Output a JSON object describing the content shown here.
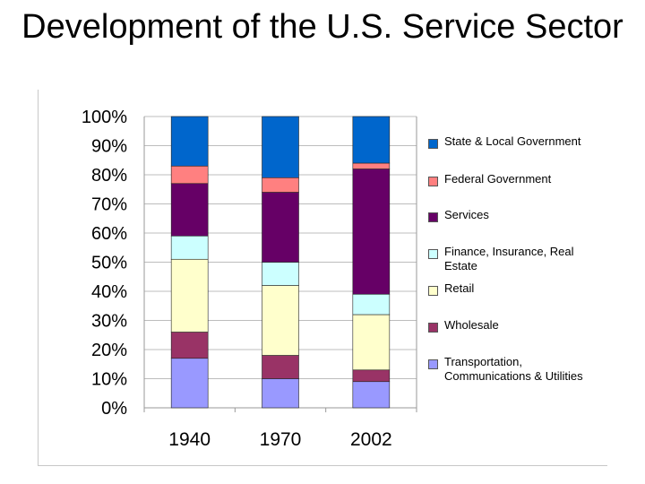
{
  "title": "Development of the U.S. Service Sector",
  "colors": {
    "state_local": "#0066cc",
    "federal": "#ff8080",
    "services": "#660066",
    "finance": "#ccffff",
    "retail": "#ffffcc",
    "wholesale": "#993366",
    "transportation": "#9999ff"
  },
  "chart_data": {
    "type": "bar",
    "stacked": true,
    "categories": [
      "1940",
      "1970",
      "2002"
    ],
    "y_tick_labels": [
      "0%",
      "10%",
      "20%",
      "30%",
      "40%",
      "50%",
      "60%",
      "70%",
      "80%",
      "90%",
      "100%"
    ],
    "ylim": [
      0,
      100
    ],
    "grid": true,
    "legend_position": "right",
    "series": [
      {
        "name": "Transportation, Communications & Utilities",
        "color_key": "transportation",
        "values": [
          17,
          10,
          9
        ]
      },
      {
        "name": "Wholesale",
        "color_key": "wholesale",
        "values": [
          9,
          8,
          4
        ]
      },
      {
        "name": "Retail",
        "color_key": "retail",
        "values": [
          25,
          24,
          19
        ]
      },
      {
        "name": "Finance, Insurance, Real Estate",
        "color_key": "finance",
        "values": [
          8,
          8,
          7
        ]
      },
      {
        "name": "Services",
        "color_key": "services",
        "values": [
          18,
          24,
          43
        ]
      },
      {
        "name": "Federal Government",
        "color_key": "federal",
        "values": [
          6,
          5,
          2
        ]
      },
      {
        "name": "State & Local Government",
        "color_key": "state_local",
        "values": [
          17,
          21,
          16
        ]
      }
    ]
  }
}
